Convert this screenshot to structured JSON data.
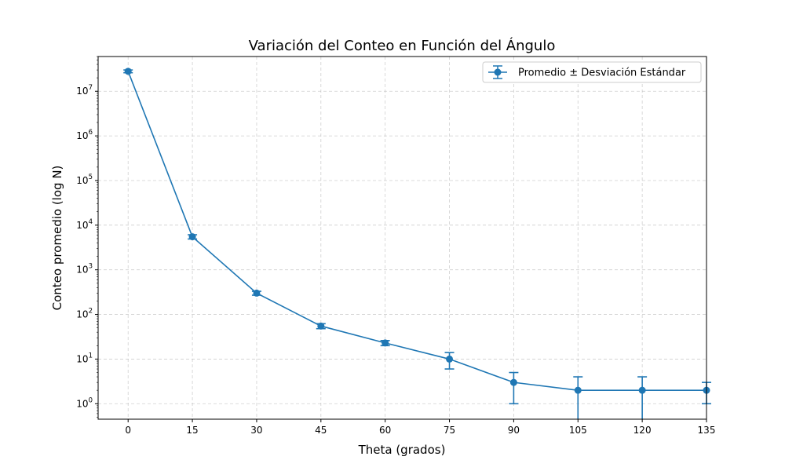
{
  "chart_data": {
    "type": "line",
    "title": "Variación del Conteo en Función del Ángulo",
    "xlabel": "Theta (grados)",
    "ylabel": "Conteo promedio (log N)",
    "yscale": "log",
    "xlim": [
      -7,
      135
    ],
    "ylim": [
      0.45,
      60000000
    ],
    "grid": true,
    "legend_position": "top-right",
    "x_ticks": [
      0,
      15,
      30,
      45,
      60,
      75,
      90,
      105,
      120,
      135
    ],
    "x_tick_labels": [
      "0",
      "15",
      "30",
      "45",
      "60",
      "75",
      "90",
      "105",
      "120",
      "135"
    ],
    "y_ticks": [
      1,
      10,
      100,
      1000,
      10000,
      100000,
      1000000,
      10000000
    ],
    "y_tick_labels": [
      {
        "base": "10",
        "exp": "0"
      },
      {
        "base": "10",
        "exp": "1"
      },
      {
        "base": "10",
        "exp": "2"
      },
      {
        "base": "10",
        "exp": "3"
      },
      {
        "base": "10",
        "exp": "4"
      },
      {
        "base": "10",
        "exp": "5"
      },
      {
        "base": "10",
        "exp": "6"
      },
      {
        "base": "10",
        "exp": "7"
      }
    ],
    "series": [
      {
        "name": "Promedio ± Desviación Estándar",
        "color": "#1f77b4",
        "x": [
          0,
          15,
          30,
          45,
          60,
          75,
          90,
          105,
          120,
          135
        ],
        "y": [
          28000000,
          5500,
          300,
          55,
          23,
          10,
          3,
          2,
          2,
          2
        ],
        "yerr_low": [
          26000000,
          4900,
          270,
          48,
          20,
          6,
          1,
          0.2,
          0.2,
          1
        ],
        "yerr_high": [
          30000000,
          6100,
          330,
          62,
          26,
          14,
          5,
          4,
          4,
          3
        ]
      }
    ]
  }
}
